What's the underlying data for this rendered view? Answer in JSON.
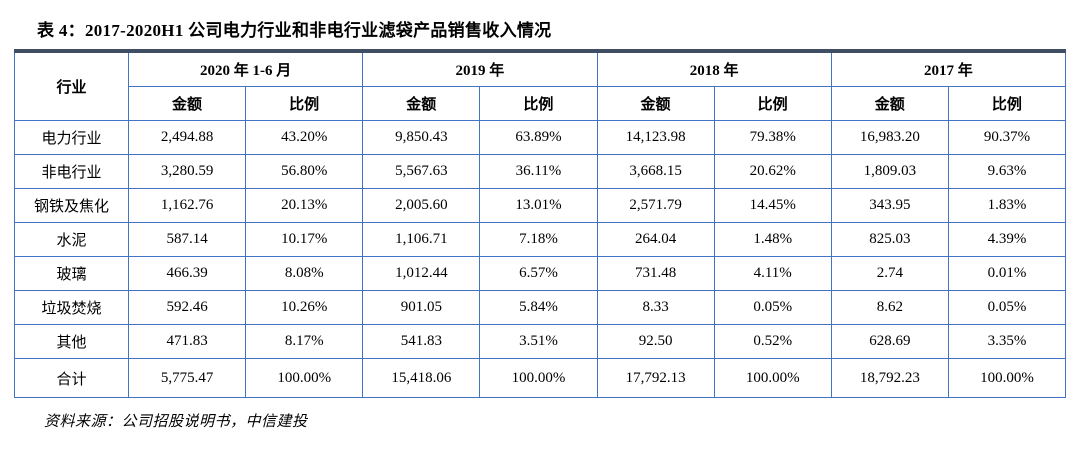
{
  "title": "表 4：2017-2020H1 公司电力行业和非电行业滤袋产品销售收入情况",
  "table": {
    "industry_header": "行业",
    "period_headers": [
      "2020 年 1-6 月",
      "2019 年",
      "2018 年",
      "2017 年"
    ],
    "sub_headers": [
      "金额",
      "比例"
    ],
    "rows": [
      {
        "industry": "电力行业",
        "values": [
          "2,494.88",
          "43.20%",
          "9,850.43",
          "63.89%",
          "14,123.98",
          "79.38%",
          "16,983.20",
          "90.37%"
        ]
      },
      {
        "industry": "非电行业",
        "values": [
          "3,280.59",
          "56.80%",
          "5,567.63",
          "36.11%",
          "3,668.15",
          "20.62%",
          "1,809.03",
          "9.63%"
        ]
      },
      {
        "industry": "钢铁及焦化",
        "values": [
          "1,162.76",
          "20.13%",
          "2,005.60",
          "13.01%",
          "2,571.79",
          "14.45%",
          "343.95",
          "1.83%"
        ]
      },
      {
        "industry": "水泥",
        "values": [
          "587.14",
          "10.17%",
          "1,106.71",
          "7.18%",
          "264.04",
          "1.48%",
          "825.03",
          "4.39%"
        ]
      },
      {
        "industry": "玻璃",
        "values": [
          "466.39",
          "8.08%",
          "1,012.44",
          "6.57%",
          "731.48",
          "4.11%",
          "2.74",
          "0.01%"
        ]
      },
      {
        "industry": "垃圾焚烧",
        "values": [
          "592.46",
          "10.26%",
          "901.05",
          "5.84%",
          "8.33",
          "0.05%",
          "8.62",
          "0.05%"
        ]
      },
      {
        "industry": "其他",
        "values": [
          "471.83",
          "8.17%",
          "541.83",
          "3.51%",
          "92.50",
          "0.52%",
          "628.69",
          "3.35%"
        ]
      },
      {
        "industry": "合计",
        "values": [
          "5,775.47",
          "100.00%",
          "15,418.06",
          "100.00%",
          "17,792.13",
          "100.00%",
          "18,792.23",
          "100.00%"
        ]
      }
    ]
  },
  "footer": {
    "source": "资料来源：公司招股说明书，中信建投"
  },
  "colors": {
    "grid": "#4472C4",
    "title_rule": "#404E63",
    "text": "#000000"
  }
}
